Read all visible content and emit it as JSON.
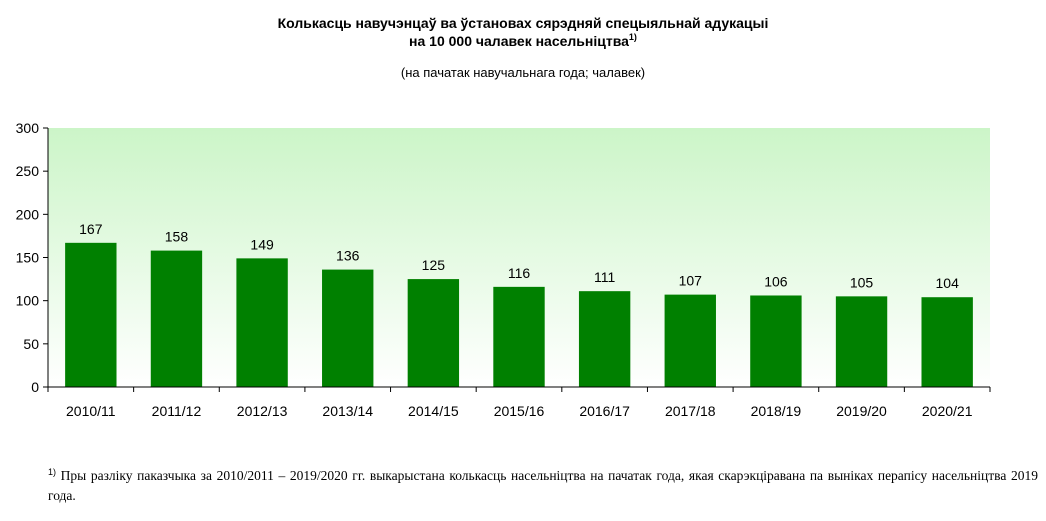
{
  "title_line1": "Колькасць навучэнцаў ва ўстановах сярэдняй  спецыяльнай адукацыі",
  "title_line2": "на 10 000 чалавек насельніцтва",
  "title_sup": "1)",
  "subtitle": "(на пачатак навучальнага года; чалавек)",
  "footnote_marker": "1)",
  "footnote_text": " Пры разліку паказчыка за 2010/2011 – 2019/2020 гг. выкарыстана колькасць насельніцтва на пачатак года, якая скарэкціравана па выніках перапісу насельніцтва 2019 года.",
  "colors": {
    "bar": "#008000",
    "plot_bg_top": "#ccf5c8",
    "plot_bg_bottom": "#ffffff",
    "axis": "#000000"
  },
  "chart_data": {
    "type": "bar",
    "categories": [
      "2010/11",
      "2011/12",
      "2012/13",
      "2013/14",
      "2014/15",
      "2015/16",
      "2016/17",
      "2017/18",
      "2018/19",
      "2019/20",
      "2020/21"
    ],
    "values": [
      167,
      158,
      149,
      136,
      125,
      116,
      111,
      107,
      106,
      105,
      104
    ],
    "data_labels": [
      "167",
      "158",
      "149",
      "136",
      "125",
      "116",
      "111",
      "107",
      "106",
      "105",
      "104"
    ],
    "y_ticks": [
      0,
      50,
      100,
      150,
      200,
      250,
      300
    ],
    "ylim": [
      0,
      300
    ],
    "title": "Колькасць навучэнцаў ва ўстановах сярэдняй  спецыяльнай адукацыі на 10 000 чалавек насельніцтва",
    "xlabel": "",
    "ylabel": "",
    "grid": false,
    "legend": false
  }
}
